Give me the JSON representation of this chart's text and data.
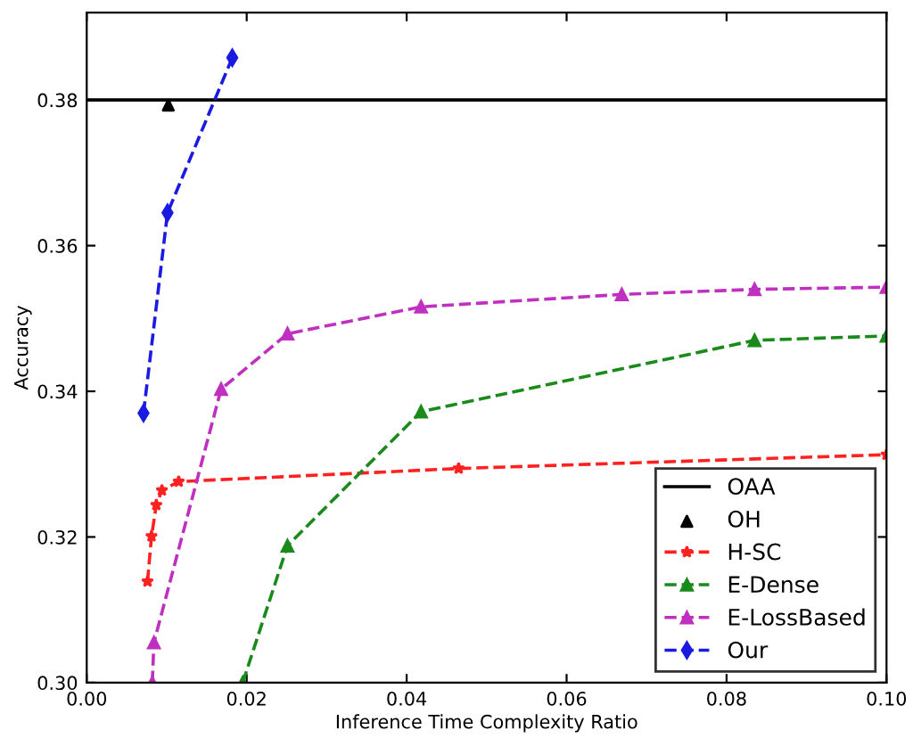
{
  "chart_data": {
    "type": "line",
    "xlabel": "Inference Time Complexity Ratio",
    "ylabel": "Accuracy",
    "xlim": [
      0,
      0.1
    ],
    "ylim": [
      0.3,
      0.392
    ],
    "xticks": [
      {
        "value": 0,
        "label": "0.00"
      },
      {
        "value": 0.02,
        "label": "0.02"
      },
      {
        "value": 0.04,
        "label": "0.04"
      },
      {
        "value": 0.06,
        "label": "0.06"
      },
      {
        "value": 0.08,
        "label": "0.08"
      },
      {
        "value": 0.1,
        "label": "0.10"
      }
    ],
    "yticks": [
      {
        "value": 0.3,
        "label": "0.30"
      },
      {
        "value": 0.32,
        "label": "0.32"
      },
      {
        "value": 0.34,
        "label": "0.34"
      },
      {
        "value": 0.36,
        "label": "0.36"
      },
      {
        "value": 0.38,
        "label": "0.38"
      }
    ],
    "grid": false,
    "legend": "bottom right",
    "series": [
      {
        "name": "OAA",
        "color": "#000000",
        "marker": "none",
        "line_style": "solid",
        "x": [
          0,
          0.1
        ],
        "values": [
          0.38,
          0.38
        ]
      },
      {
        "name": "OH",
        "type": "scatter",
        "color": "#000000",
        "marker": "triangle",
        "x": [
          0.0102
        ],
        "values": [
          0.3793
        ]
      },
      {
        "name": "H-SC",
        "color": "#ff2020",
        "marker": "star",
        "line_style": "dashed",
        "x": [
          0.0076,
          0.0081,
          0.0087,
          0.0094,
          0.0115,
          0.0465,
          0.1
        ],
        "values": [
          0.3139,
          0.3201,
          0.3244,
          0.3264,
          0.3276,
          0.3294,
          0.3313
        ]
      },
      {
        "name": "E-Dense",
        "color": "#1a8a1a",
        "marker": "triangle",
        "line_style": "dashed",
        "x": [
          0.0195,
          0.0251,
          0.0418,
          0.0835,
          0.1
        ],
        "values": [
          0.3,
          0.3188,
          0.3372,
          0.347,
          0.3476
        ]
      },
      {
        "name": "E-LossBased",
        "color": "#c030c0",
        "marker": "triangle",
        "line_style": "dashed",
        "x": [
          0.0082,
          0.0084,
          0.0168,
          0.0251,
          0.0418,
          0.0669,
          0.0835,
          0.1
        ],
        "values": [
          0.3,
          0.3055,
          0.3403,
          0.3479,
          0.3516,
          0.3533,
          0.354,
          0.3543
        ]
      },
      {
        "name": "Our",
        "color": "#1a1ae0",
        "marker": "diamond",
        "line_style": "dashed",
        "x": [
          0.0071,
          0.0101,
          0.0182
        ],
        "values": [
          0.337,
          0.3645,
          0.3858
        ]
      }
    ]
  }
}
